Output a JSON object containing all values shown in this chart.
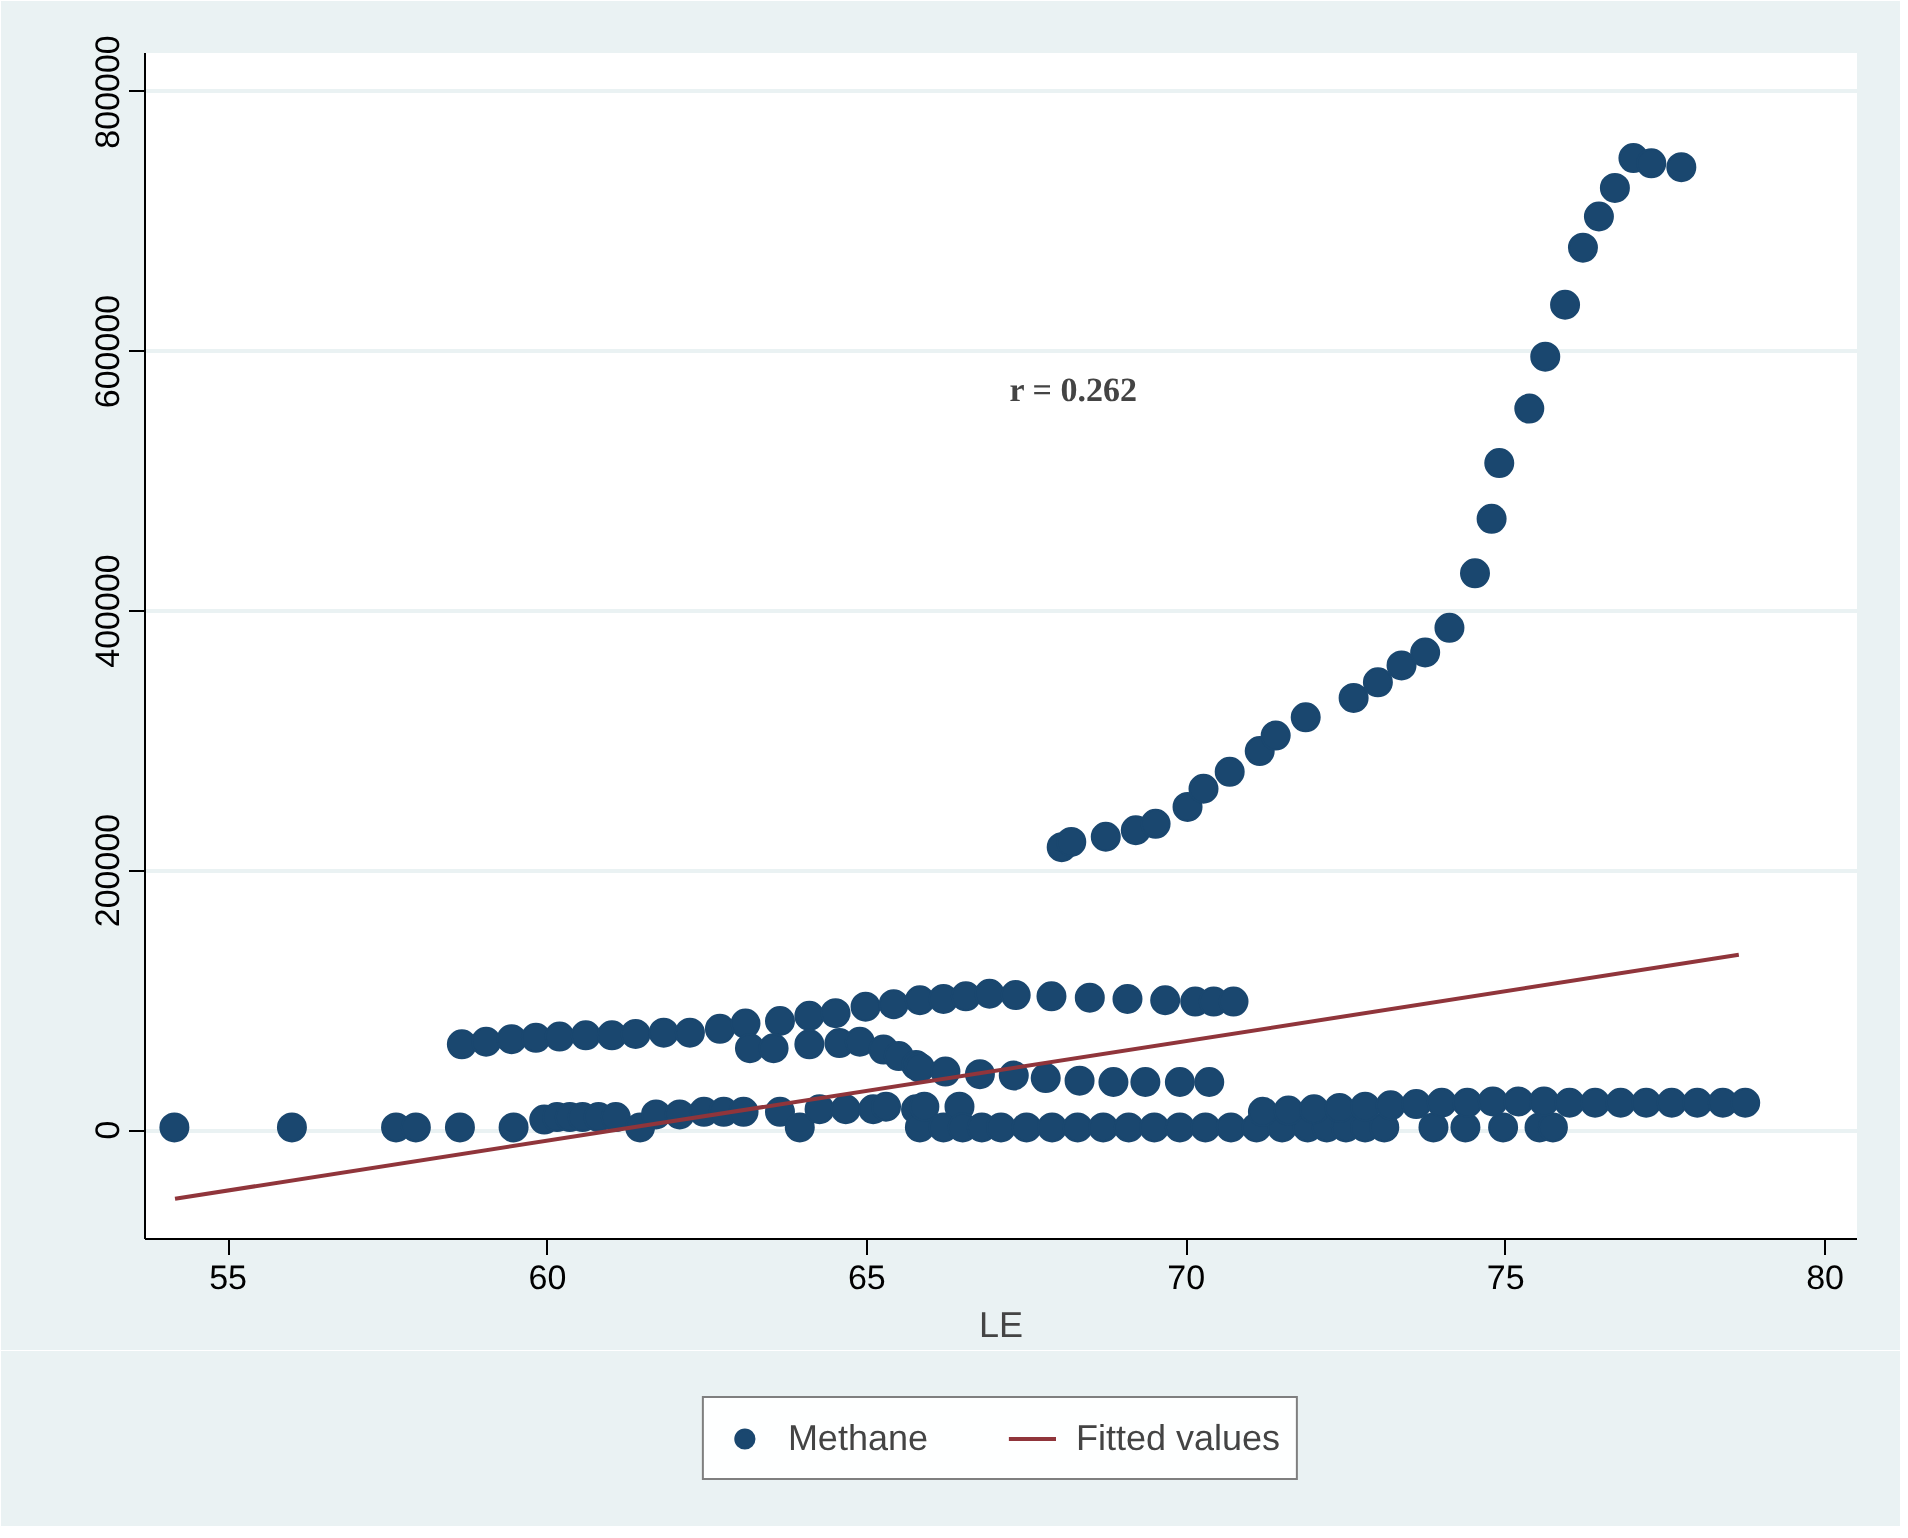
{
  "chart_data": {
    "type": "scatter",
    "xlabel": "LE",
    "xlim": [
      53.7,
      80.5
    ],
    "ylim": [
      -84000,
      830000
    ],
    "xticks": [
      55,
      60,
      65,
      70,
      75,
      80
    ],
    "yticks": [
      0,
      200000,
      400000,
      600000,
      800000
    ],
    "grid": "y",
    "legend": "bottom",
    "annotations": [
      "r = 0.262"
    ],
    "series": [
      {
        "name": "Methane",
        "marker": "circle",
        "color": "#1a476f",
        "x": [
          68.05,
          68.2,
          68.74,
          69.21,
          69.52,
          70.02,
          70.27,
          70.68,
          71.15,
          71.4,
          71.87,
          72.62,
          73.0,
          73.37,
          73.74,
          74.12,
          74.52,
          74.78,
          74.9,
          75.37,
          75.62,
          75.93,
          76.21,
          76.46,
          76.71,
          77.0,
          77.28,
          77.75,
          58.66,
          59.04,
          59.44,
          59.82,
          60.19,
          60.6,
          61.01,
          61.38,
          61.82,
          62.23,
          62.7,
          63.1,
          63.64,
          64.1,
          64.51,
          64.98,
          65.42,
          65.83,
          66.2,
          66.55,
          66.92,
          67.33,
          67.89,
          68.49,
          69.08,
          69.67,
          70.14,
          70.43,
          70.74,
          63.17,
          63.54,
          64.1,
          64.57,
          64.89,
          65.26,
          65.5,
          65.77,
          65.83,
          66.23,
          66.77,
          67.3,
          67.8,
          68.33,
          68.86,
          69.36,
          69.9,
          70.36,
          54.16,
          56.0,
          57.63,
          57.94,
          58.63,
          59.47,
          59.95,
          60.15,
          60.35,
          60.55,
          60.8,
          61.07,
          61.45,
          61.7,
          62.07,
          62.45,
          62.76,
          63.07,
          63.64,
          63.95,
          64.26,
          64.67,
          65.1,
          65.3,
          65.77,
          65.83,
          65.9,
          66.2,
          66.45,
          66.5,
          66.8,
          67.1,
          67.5,
          67.9,
          68.3,
          68.7,
          69.1,
          69.5,
          69.9,
          70.3,
          70.7,
          71.1,
          71.5,
          71.9,
          72.2,
          72.5,
          72.8,
          73.1,
          73.87,
          74.37,
          74.96,
          75.53,
          75.74,
          71.2,
          71.6,
          72.0,
          72.4,
          72.8,
          73.2,
          73.6,
          74.0,
          74.4,
          74.8,
          75.2,
          75.6,
          76.0,
          76.4,
          76.8,
          77.2,
          77.6,
          78.0,
          78.4,
          78.75
        ],
        "values": [
          218000,
          222000,
          226000,
          231000,
          236000,
          249000,
          263000,
          276000,
          292000,
          304000,
          318000,
          333000,
          345000,
          358000,
          368000,
          387000,
          429000,
          471000,
          514000,
          556000,
          596000,
          636000,
          680000,
          704000,
          726000,
          749000,
          745000,
          742000,
          66000,
          68000,
          70000,
          71000,
          72000,
          73000,
          73000,
          74000,
          75000,
          75000,
          78000,
          82000,
          84000,
          88000,
          90000,
          95000,
          97000,
          100000,
          101000,
          103000,
          105000,
          104000,
          103000,
          102000,
          101000,
          100000,
          99000,
          99000,
          99000,
          63000,
          63000,
          66000,
          67000,
          68000,
          62000,
          57000,
          50000,
          48000,
          45000,
          43000,
          42000,
          40000,
          38000,
          37000,
          37000,
          37000,
          37000,
          2000,
          2000,
          2000,
          2000,
          2000,
          2000,
          8000,
          10000,
          10000,
          10000,
          10000,
          10000,
          2000,
          12000,
          12000,
          14000,
          14000,
          14000,
          14000,
          2000,
          16000,
          16000,
          16000,
          18000,
          16000,
          2000,
          18000,
          2000,
          18000,
          2000,
          2000,
          2000,
          2000,
          2000,
          2000,
          2000,
          2000,
          2000,
          2000,
          2000,
          2000,
          2000,
          2000,
          2000,
          2000,
          2000,
          2000,
          2000,
          2000,
          2000,
          2000,
          2000,
          2000,
          14000,
          15000,
          16000,
          17000,
          18000,
          19000,
          20000,
          21000,
          21000,
          22000,
          22000,
          22000,
          21000,
          21000,
          21000,
          21000,
          21000,
          21000,
          21000,
          21000
        ]
      },
      {
        "name": "Fitted values",
        "type": "line",
        "color": "#90353b",
        "x": [
          54.17,
          78.65
        ],
        "values": [
          -53000,
          135000
        ]
      }
    ]
  }
}
